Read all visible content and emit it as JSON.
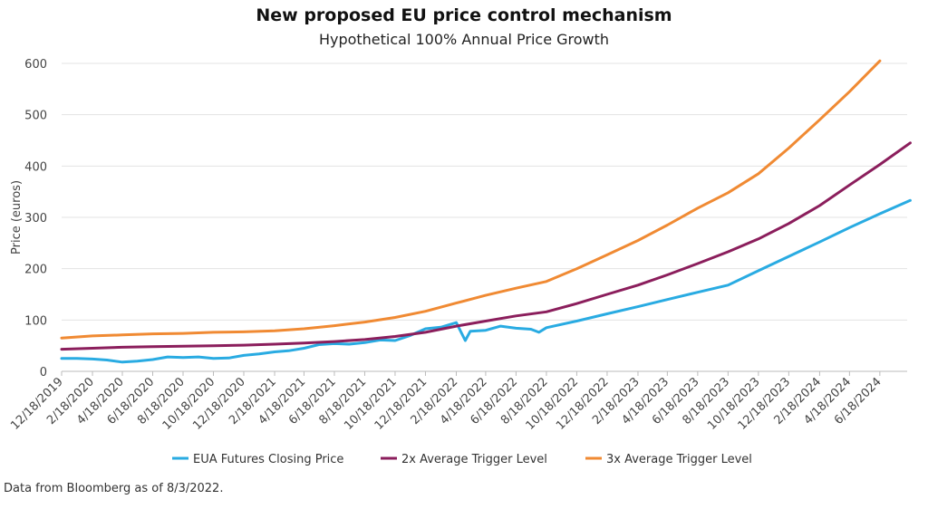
{
  "colors": {
    "eua": "#29ABE2",
    "trigger2x": "#8B1E5C",
    "trigger3x": "#F08A33",
    "grid": "#e3e3e3"
  },
  "source": "Data from  Bloomberg as of 8/3/2022.",
  "chart_data": {
    "type": "line",
    "title": "New proposed EU price control mechanism",
    "subtitle": "Hypothetical 100% Annual Price Growth",
    "xlabel": "",
    "ylabel": "Price (euros)",
    "ylim": [
      0,
      600
    ],
    "yticks": [
      0,
      100,
      200,
      300,
      400,
      500,
      600
    ],
    "grid": true,
    "legend_position": "bottom",
    "x_tick_labels": [
      "12/18/2019",
      "2/18/2020",
      "4/18/2020",
      "6/18/2020",
      "8/18/2020",
      "10/18/2020",
      "12/18/2020",
      "2/18/2021",
      "4/18/2021",
      "6/18/2021",
      "8/18/2021",
      "10/18/2021",
      "12/18/2021",
      "2/18/2022",
      "4/18/2022",
      "6/18/2022",
      "8/18/2022",
      "10/18/2022",
      "12/18/2022",
      "2/18/2023",
      "4/18/2023",
      "6/18/2023",
      "8/18/2023",
      "10/18/2023",
      "12/18/2023",
      "2/18/2024",
      "4/18/2024",
      "6/18/2024"
    ],
    "series": [
      {
        "name": "EUA Futures Closing Price",
        "color_key": "eua",
        "x": [
          "12/18/2019",
          "1/18/2020",
          "2/18/2020",
          "3/18/2020",
          "4/18/2020",
          "5/18/2020",
          "6/18/2020",
          "7/18/2020",
          "8/18/2020",
          "9/18/2020",
          "10/18/2020",
          "11/18/2020",
          "12/18/2020",
          "1/18/2021",
          "2/18/2021",
          "3/18/2021",
          "4/18/2021",
          "5/18/2021",
          "6/18/2021",
          "7/18/2021",
          "8/18/2021",
          "9/18/2021",
          "10/18/2021",
          "11/18/2021",
          "12/18/2021",
          "1/18/2022",
          "2/18/2022",
          "3/8/2022",
          "3/18/2022",
          "4/18/2022",
          "5/18/2022",
          "6/18/2022",
          "7/18/2022",
          "8/3/2022",
          "8/18/2022",
          "10/18/2022",
          "12/18/2022",
          "2/18/2023",
          "4/18/2023",
          "6/18/2023",
          "8/18/2023",
          "10/18/2023",
          "12/18/2023",
          "2/18/2024",
          "4/18/2024",
          "6/18/2024",
          "8/18/2024"
        ],
        "values": [
          25,
          25,
          24,
          22,
          18,
          20,
          23,
          28,
          27,
          28,
          25,
          26,
          31,
          34,
          38,
          40,
          45,
          52,
          54,
          53,
          56,
          61,
          60,
          70,
          83,
          86,
          95,
          60,
          78,
          80,
          88,
          84,
          82,
          76,
          85,
          98,
          112,
          126,
          140,
          154,
          168,
          196,
          224,
          252,
          280,
          307,
          333
        ]
      },
      {
        "name": "2x Average Trigger Level",
        "color_key": "trigger2x",
        "x": [
          "12/18/2019",
          "2/18/2020",
          "4/18/2020",
          "6/18/2020",
          "8/18/2020",
          "10/18/2020",
          "12/18/2020",
          "2/18/2021",
          "4/18/2021",
          "6/18/2021",
          "8/18/2021",
          "10/18/2021",
          "12/18/2021",
          "2/18/2022",
          "4/18/2022",
          "6/18/2022",
          "8/18/2022",
          "10/18/2022",
          "12/18/2022",
          "2/18/2023",
          "4/18/2023",
          "6/18/2023",
          "8/18/2023",
          "10/18/2023",
          "12/18/2023",
          "2/18/2024",
          "4/18/2024",
          "6/18/2024",
          "8/18/2024"
        ],
        "values": [
          43,
          45,
          47,
          48,
          49,
          50,
          51,
          53,
          55,
          58,
          62,
          68,
          76,
          88,
          98,
          108,
          116,
          132,
          150,
          168,
          188,
          210,
          233,
          258,
          288,
          323,
          363,
          403,
          445
        ]
      },
      {
        "name": "3x Average Trigger Level",
        "color_key": "trigger3x",
        "x": [
          "12/18/2019",
          "2/18/2020",
          "4/18/2020",
          "6/18/2020",
          "8/18/2020",
          "10/18/2020",
          "12/18/2020",
          "2/18/2021",
          "4/18/2021",
          "6/18/2021",
          "8/18/2021",
          "10/18/2021",
          "12/18/2021",
          "2/18/2022",
          "4/18/2022",
          "6/18/2022",
          "8/18/2022",
          "10/18/2022",
          "12/18/2022",
          "2/18/2023",
          "4/18/2023",
          "6/18/2023",
          "8/18/2023",
          "10/18/2023",
          "12/18/2023",
          "2/18/2024",
          "4/18/2024",
          "6/18/2024"
        ],
        "values": [
          65,
          69,
          71,
          73,
          74,
          76,
          77,
          79,
          83,
          89,
          96,
          105,
          117,
          133,
          148,
          162,
          175,
          200,
          227,
          255,
          285,
          318,
          348,
          385,
          435,
          490,
          545,
          605
        ]
      }
    ]
  }
}
